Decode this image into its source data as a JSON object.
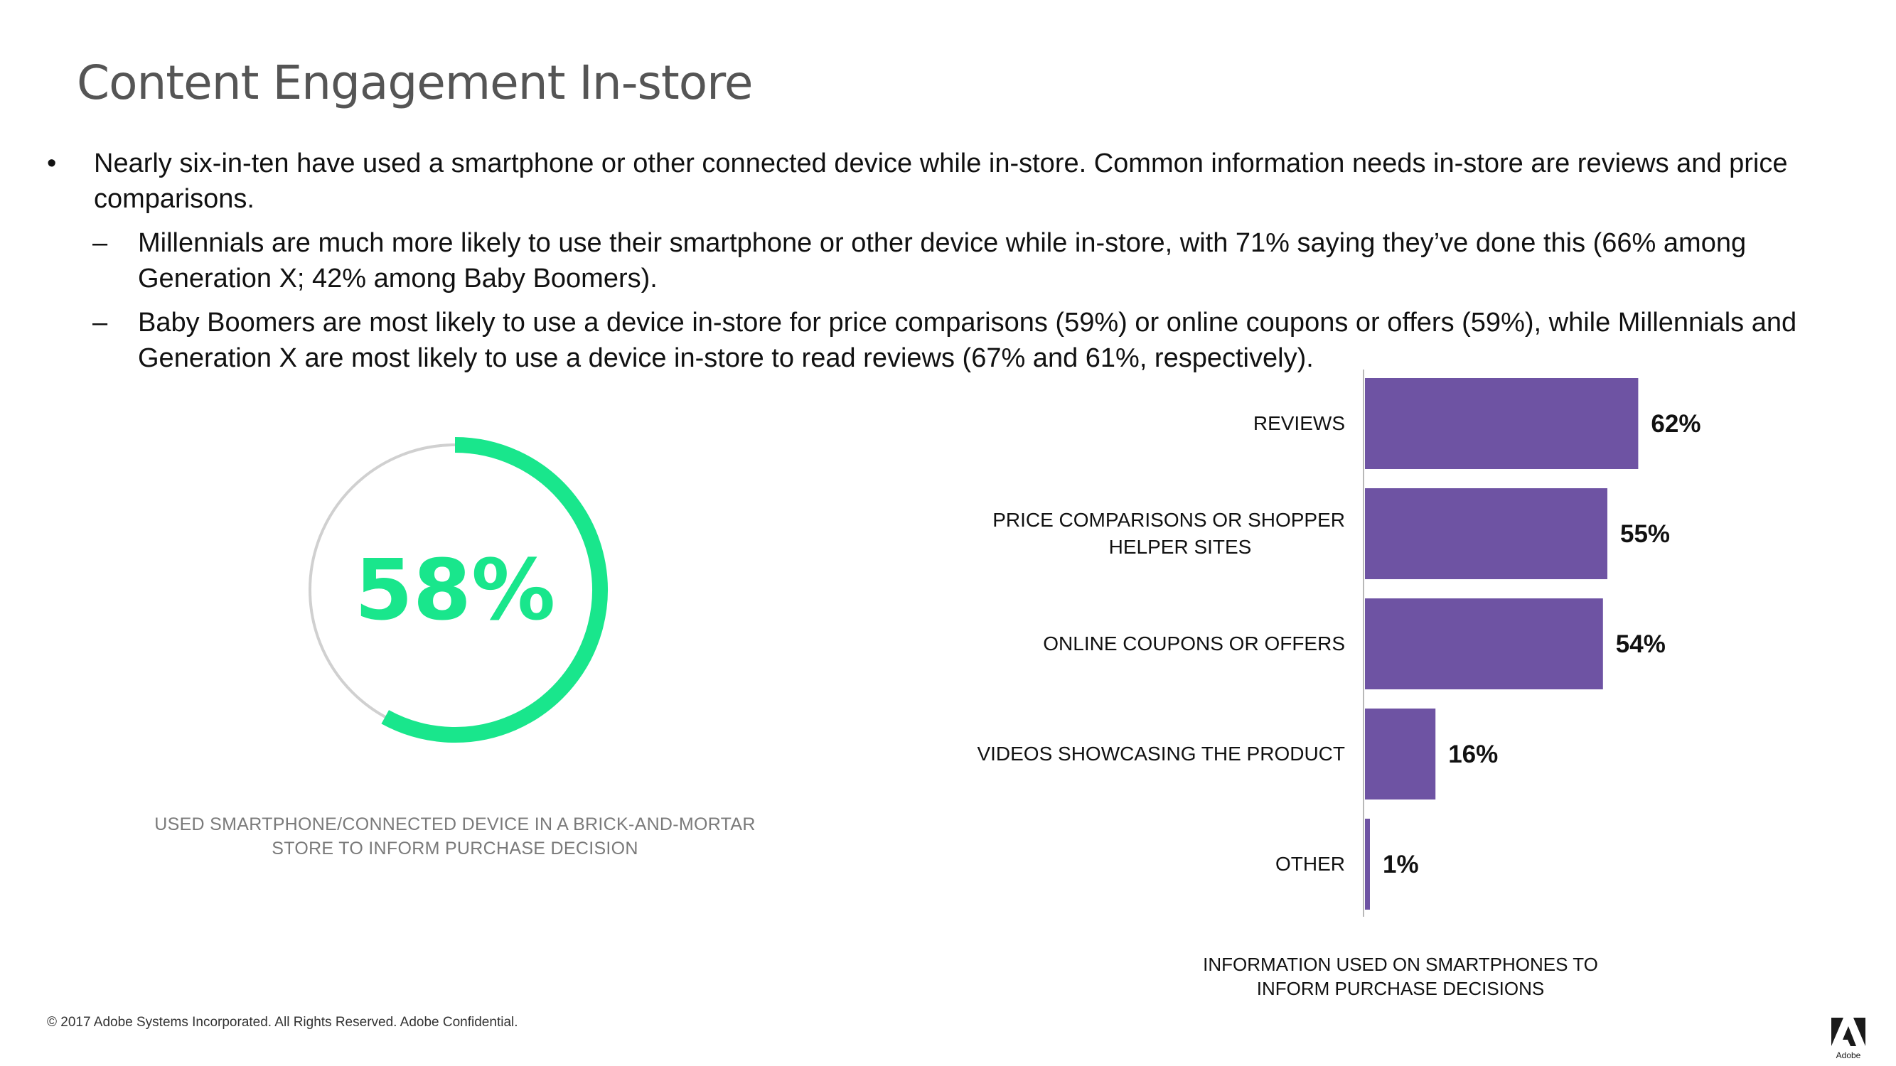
{
  "slide": {
    "title": "Content Engagement In-store",
    "bullets": [
      {
        "level": 1,
        "mark": "•",
        "text": "Nearly six-in-ten have used a smartphone or other connected device while in-store. Common information needs in-store are reviews and price comparisons."
      },
      {
        "level": 2,
        "mark": "–",
        "text": "Millennials are much more likely to use their smartphone or other device while in-store, with 71% saying they’ve done this (66% among Generation X; 42% among Baby Boomers)."
      },
      {
        "level": 2,
        "mark": "–",
        "text": "Baby Boomers are most likely to use a device in-store for price comparisons (59%) or online coupons or offers (59%), while Millennials and Generation X are most likely to use a device in-store to read reviews (67% and 61%, respectively)."
      }
    ],
    "footer": "© 2017 Adobe Systems Incorporated.  All Rights Reserved.  Adobe Confidential.",
    "logo_icon": "adobe-logo-icon"
  },
  "chart_data": [
    {
      "type": "pie",
      "variant": "donut",
      "value": 58,
      "value_label": "58%",
      "caption_line1": "USED SMARTPHONE/CONNECTED DEVICE IN A BRICK-AND-MORTAR",
      "caption_line2": "STORE TO INFORM PURCHASE DECISION",
      "colors": {
        "filled": "#19e68c",
        "track": "#d0d0d0"
      }
    },
    {
      "type": "bar",
      "orientation": "horizontal",
      "categories": [
        [
          "REVIEWS"
        ],
        [
          "PRICE COMPARISONS OR SHOPPER",
          "HELPER SITES"
        ],
        [
          "ONLINE COUPONS OR OFFERS"
        ],
        [
          "VIDEOS SHOWCASING THE PRODUCT"
        ],
        [
          "OTHER"
        ]
      ],
      "values": [
        62,
        55,
        54,
        16,
        1
      ],
      "value_labels": [
        "62%",
        "55%",
        "54%",
        "16%",
        "1%"
      ],
      "xlim": [
        0,
        100
      ],
      "caption_line1": "INFORMATION USED ON SMARTPHONES TO",
      "caption_line2": "INFORM PURCHASE DECISIONS",
      "colors": {
        "bar": "#6e53a3",
        "axis": "#b8b8b8"
      },
      "grid": false,
      "legend": "none"
    }
  ]
}
